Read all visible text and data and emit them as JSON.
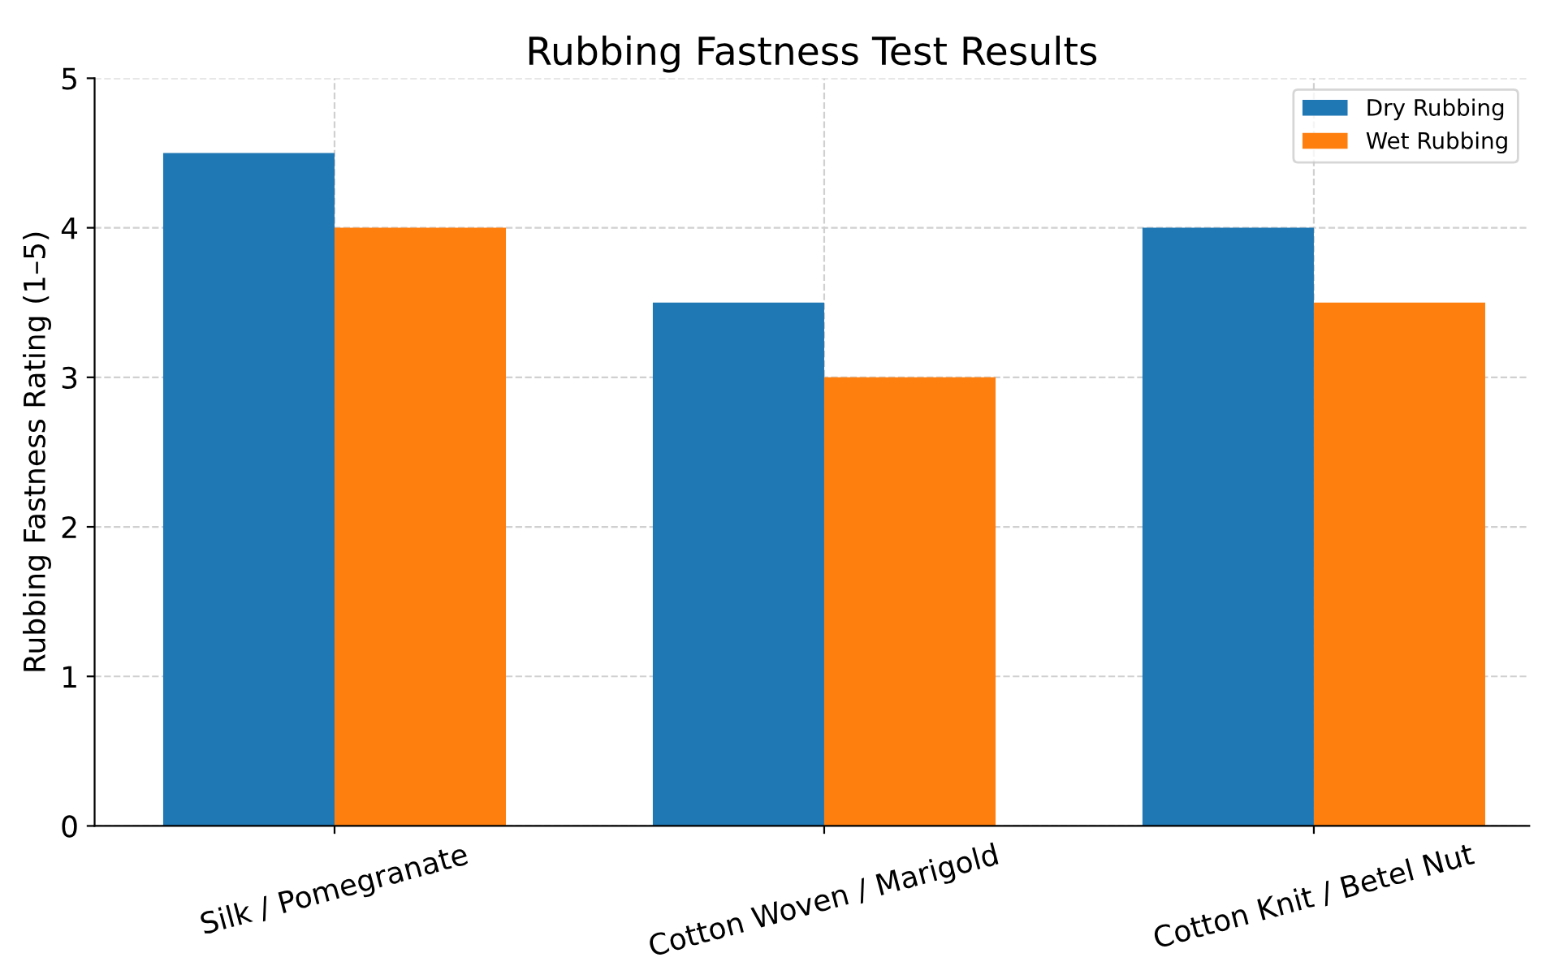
{
  "chart_data": {
    "type": "bar",
    "title": "Rubbing Fastness Test Results",
    "ylabel": "Rubbing Fastness Rating (1–5)",
    "categories": [
      "Silk / Pomegranate",
      "Cotton Woven / Marigold",
      "Cotton Knit / Betel Nut"
    ],
    "series": [
      {
        "name": "Dry Rubbing",
        "color": "#1f77b4",
        "values": [
          4.5,
          3.5,
          4
        ]
      },
      {
        "name": "Wet Rubbing",
        "color": "#ff7f0e",
        "values": [
          4,
          3,
          3.5
        ]
      }
    ],
    "ylim": [
      0,
      5
    ],
    "yticks": [
      0,
      1,
      2,
      3,
      4,
      5
    ],
    "grid": true,
    "legend": "top right"
  }
}
